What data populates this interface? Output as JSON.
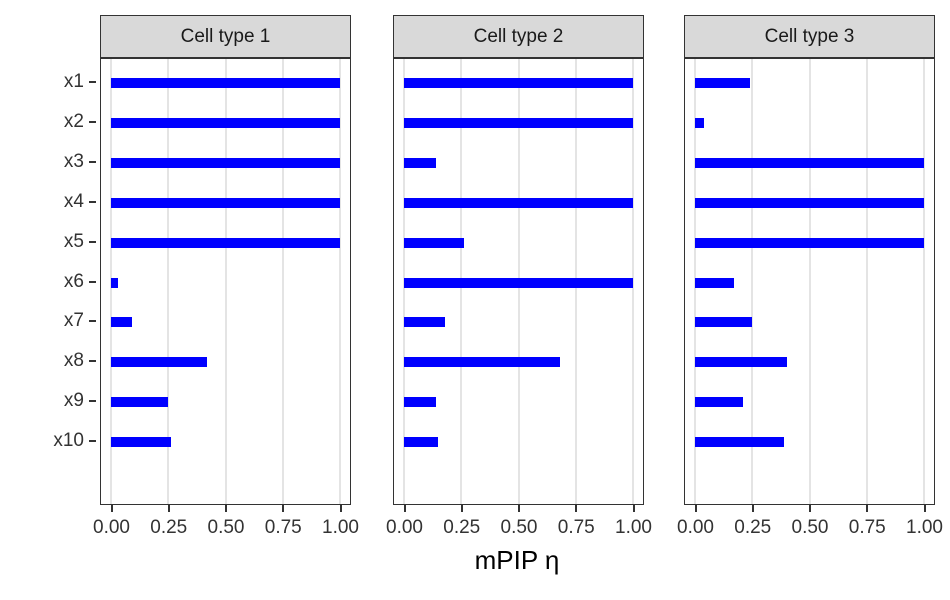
{
  "chart_data": {
    "type": "bar",
    "orientation": "horizontal",
    "title": "",
    "xlabel": "mPIP η",
    "ylabel": "",
    "xlim": [
      0,
      1
    ],
    "grid": true,
    "categories": [
      "x1",
      "x2",
      "x3",
      "x4",
      "x5",
      "x6",
      "x7",
      "x8",
      "x9",
      "x10"
    ],
    "facets": [
      {
        "label": "Cell type 1",
        "values": [
          1.0,
          1.0,
          1.0,
          1.0,
          1.0,
          0.03,
          0.09,
          0.42,
          0.25,
          0.26
        ]
      },
      {
        "label": "Cell type 2",
        "values": [
          1.0,
          1.0,
          0.14,
          1.0,
          0.26,
          1.0,
          0.18,
          0.68,
          0.14,
          0.15
        ]
      },
      {
        "label": "Cell type 3",
        "values": [
          0.24,
          0.04,
          1.0,
          1.0,
          1.0,
          0.17,
          0.25,
          0.4,
          0.21,
          0.39
        ]
      }
    ],
    "x_tick_labels": [
      "0.00",
      "0.25",
      "0.50",
      "0.75",
      "1.00"
    ],
    "x_tick_values": [
      0,
      0.25,
      0.5,
      0.75,
      1.0
    ],
    "colors": {
      "bar": "#0000FF",
      "strip_background": "#D9D9D9",
      "panel_border": "#333333",
      "gridline": "#E4E4E4",
      "tick_text": "#333333",
      "axis_title_text": "#000000"
    }
  }
}
